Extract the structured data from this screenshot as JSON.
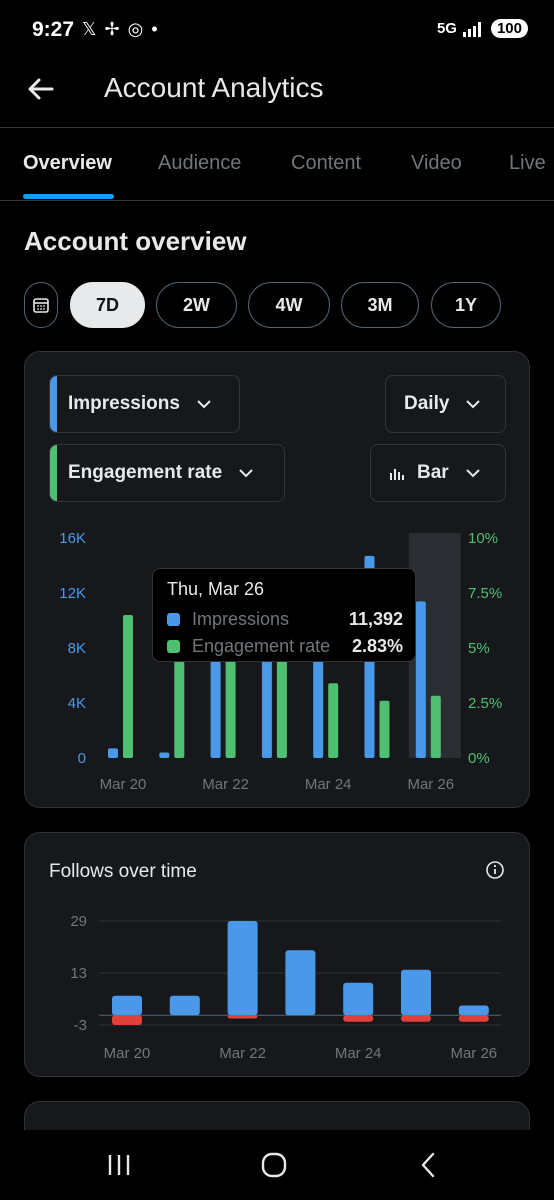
{
  "status_bar": {
    "time": "9:27",
    "notif_icons": [
      "x-icon",
      "pinwheel-icon",
      "instagram-icon",
      "dot-icon"
    ],
    "network": "5G",
    "battery": "100"
  },
  "header": {
    "title": "Account Analytics"
  },
  "tabs": [
    {
      "label": "Overview",
      "active": true
    },
    {
      "label": "Audience",
      "active": false
    },
    {
      "label": "Content",
      "active": false
    },
    {
      "label": "Video",
      "active": false
    },
    {
      "label": "Live",
      "active": false
    }
  ],
  "section_title": "Account overview",
  "ranges": [
    {
      "label": "7D",
      "selected": true
    },
    {
      "label": "2W",
      "selected": false
    },
    {
      "label": "4W",
      "selected": false
    },
    {
      "label": "3M",
      "selected": false
    },
    {
      "label": "1Y",
      "selected": false
    }
  ],
  "controls": {
    "metric1": "Impressions",
    "metric2": "Engagement rate",
    "interval": "Daily",
    "chart_type": "Bar"
  },
  "colors": {
    "impressions": "#4a99e9",
    "engagement": "#4fbf72",
    "follows_gained": "#4a99e9",
    "follows_lost": "#e0413b",
    "accent": "#1d9bf0"
  },
  "tooltip": {
    "date": "Thu, Mar 26",
    "rows": [
      {
        "name": "Impressions",
        "value": "11,392"
      },
      {
        "name": "Engagement rate",
        "value": "2.83%"
      }
    ]
  },
  "chart_data": [
    {
      "type": "bar",
      "title": "",
      "categories": [
        "Mar 20",
        "Mar 21",
        "Mar 22",
        "Mar 23",
        "Mar 24",
        "Mar 25",
        "Mar 26"
      ],
      "x_tick_labels": [
        "Mar 20",
        "Mar 22",
        "Mar 24",
        "Mar 26"
      ],
      "series": [
        {
          "name": "Impressions",
          "axis": "left",
          "values": [
            700,
            400,
            9500,
            9600,
            9600,
            14700,
            11392
          ]
        },
        {
          "name": "Engagement rate",
          "axis": "right",
          "values": [
            6.5,
            4.5,
            5.0,
            5.0,
            3.4,
            2.6,
            2.83
          ]
        }
      ],
      "y_left": {
        "ticks": [
          "0",
          "4K",
          "8K",
          "12K",
          "16K"
        ],
        "ylim": [
          0,
          16000
        ]
      },
      "y_right": {
        "ticks": [
          "0%",
          "2.5%",
          "5%",
          "7.5%",
          "10%"
        ],
        "ylim": [
          0,
          10
        ]
      },
      "highlighted_category": "Mar 26",
      "grid": false
    },
    {
      "type": "bar",
      "title": "Follows over time",
      "categories": [
        "Mar 20",
        "Mar 21",
        "Mar 22",
        "Mar 23",
        "Mar 24",
        "Mar 25",
        "Mar 26"
      ],
      "x_tick_labels": [
        "Mar 20",
        "Mar 22",
        "Mar 24",
        "Mar 26"
      ],
      "series": [
        {
          "values": [
            6,
            6,
            29,
            20,
            10,
            14,
            3
          ]
        },
        {
          "values": [
            -3,
            0,
            -1,
            0,
            -2,
            -2,
            -2
          ]
        }
      ],
      "y_ticks": [
        "-3",
        "13",
        "29"
      ],
      "ylim": [
        -3,
        29
      ],
      "grid": true
    }
  ]
}
